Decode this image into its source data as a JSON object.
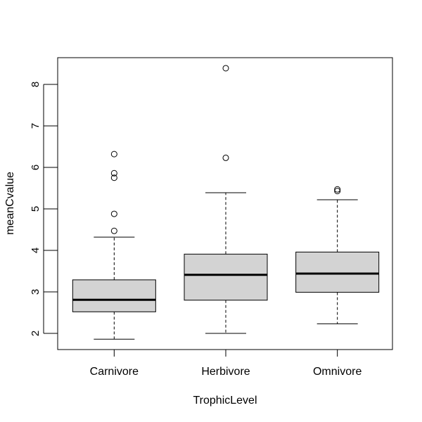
{
  "chart_data": {
    "type": "box",
    "title": "",
    "xlabel": "TrophicLevel",
    "ylabel": "meanCvalue",
    "ylim": [
      1.6,
      8.65
    ],
    "yticks": [
      2,
      3,
      4,
      5,
      6,
      7,
      8
    ],
    "categories": [
      "Carnivore",
      "Herbivore",
      "Omnivore"
    ],
    "boxes": [
      {
        "category": "Carnivore",
        "whisker_low": 1.86,
        "q1": 2.52,
        "median": 2.81,
        "q3": 3.29,
        "whisker_high": 4.32,
        "outliers": [
          4.47,
          4.88,
          5.75,
          5.86,
          6.32
        ]
      },
      {
        "category": "Herbivore",
        "whisker_low": 2.0,
        "q1": 2.8,
        "median": 3.41,
        "q3": 3.91,
        "whisker_high": 5.39,
        "outliers": [
          6.23,
          8.39
        ]
      },
      {
        "category": "Omnivore",
        "whisker_low": 2.23,
        "q1": 2.99,
        "median": 3.44,
        "q3": 3.96,
        "whisker_high": 5.22,
        "outliers": [
          5.43,
          5.47
        ]
      }
    ],
    "box_fill": "#d3d3d3",
    "line_color": "#000000",
    "grid": false,
    "legend": "none"
  }
}
